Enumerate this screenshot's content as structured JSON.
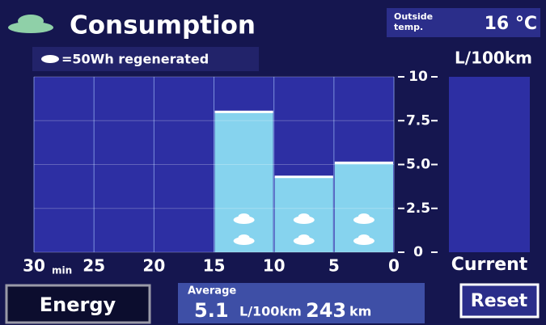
{
  "title": "Consumption",
  "legend": "=50Wh regenerated",
  "outside_temp": {
    "label": [
      "Outside",
      "temp."
    ],
    "value": "16 °C"
  },
  "buttons": {
    "energy": "Energy",
    "reset": "Reset"
  },
  "average": {
    "label": "Average",
    "consumption": 5.1,
    "distance": 243,
    "distance_unit": "km"
  },
  "chart_data": {
    "type": "histogram",
    "y_label": "L/100km",
    "bins": [
      30,
      25,
      20,
      15,
      10,
      5,
      0
    ],
    "values": [
      null,
      null,
      null,
      8.0,
      4.3,
      5.1
    ],
    "regenerated": [
      0,
      0,
      0,
      2,
      2,
      2
    ],
    "color": "#86d3ee",
    "xlim": [
      30,
      0
    ],
    "xticks": [
      30,
      25,
      20,
      15,
      10,
      5,
      0
    ],
    "x_unit": "min",
    "ylim": [
      0,
      10
    ],
    "yticks": [
      0,
      {
        "value": 2.5,
        "label": "2.5"
      },
      {
        "value": 5,
        "label": "5.0"
      },
      {
        "value": 7.5,
        "label": "7.5"
      },
      10
    ],
    "current_label": "Current",
    "grid": true
  }
}
